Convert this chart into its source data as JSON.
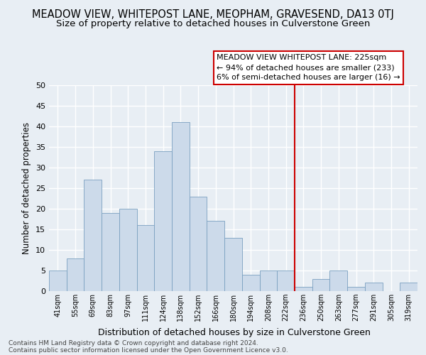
{
  "title": "MEADOW VIEW, WHITEPOST LANE, MEOPHAM, GRAVESEND, DA13 0TJ",
  "subtitle": "Size of property relative to detached houses in Culverstone Green",
  "xlabel": "Distribution of detached houses by size in Culverstone Green",
  "ylabel": "Number of detached properties",
  "footnote1": "Contains HM Land Registry data © Crown copyright and database right 2024.",
  "footnote2": "Contains public sector information licensed under the Open Government Licence v3.0.",
  "bar_labels": [
    "41sqm",
    "55sqm",
    "69sqm",
    "83sqm",
    "97sqm",
    "111sqm",
    "124sqm",
    "138sqm",
    "152sqm",
    "166sqm",
    "180sqm",
    "194sqm",
    "208sqm",
    "222sqm",
    "236sqm",
    "250sqm",
    "263sqm",
    "277sqm",
    "291sqm",
    "305sqm",
    "319sqm"
  ],
  "bar_values": [
    5,
    8,
    27,
    19,
    20,
    16,
    34,
    41,
    23,
    17,
    13,
    4,
    5,
    5,
    1,
    3,
    5,
    1,
    2,
    0,
    2
  ],
  "bar_color": "#ccdaea",
  "bar_edge_color": "#7aA0c0",
  "vline_x": 13.5,
  "vline_color": "#cc0000",
  "ylim": [
    0,
    50
  ],
  "yticks": [
    0,
    5,
    10,
    15,
    20,
    25,
    30,
    35,
    40,
    45,
    50
  ],
  "annotation_title": "MEADOW VIEW WHITEPOST LANE: 225sqm",
  "annotation_line1": "← 94% of detached houses are smaller (233)",
  "annotation_line2": "6% of semi-detached houses are larger (16) →",
  "bg_color": "#e8eef4",
  "grid_color": "#ffffff",
  "title_fontsize": 10.5,
  "subtitle_fontsize": 9.5
}
